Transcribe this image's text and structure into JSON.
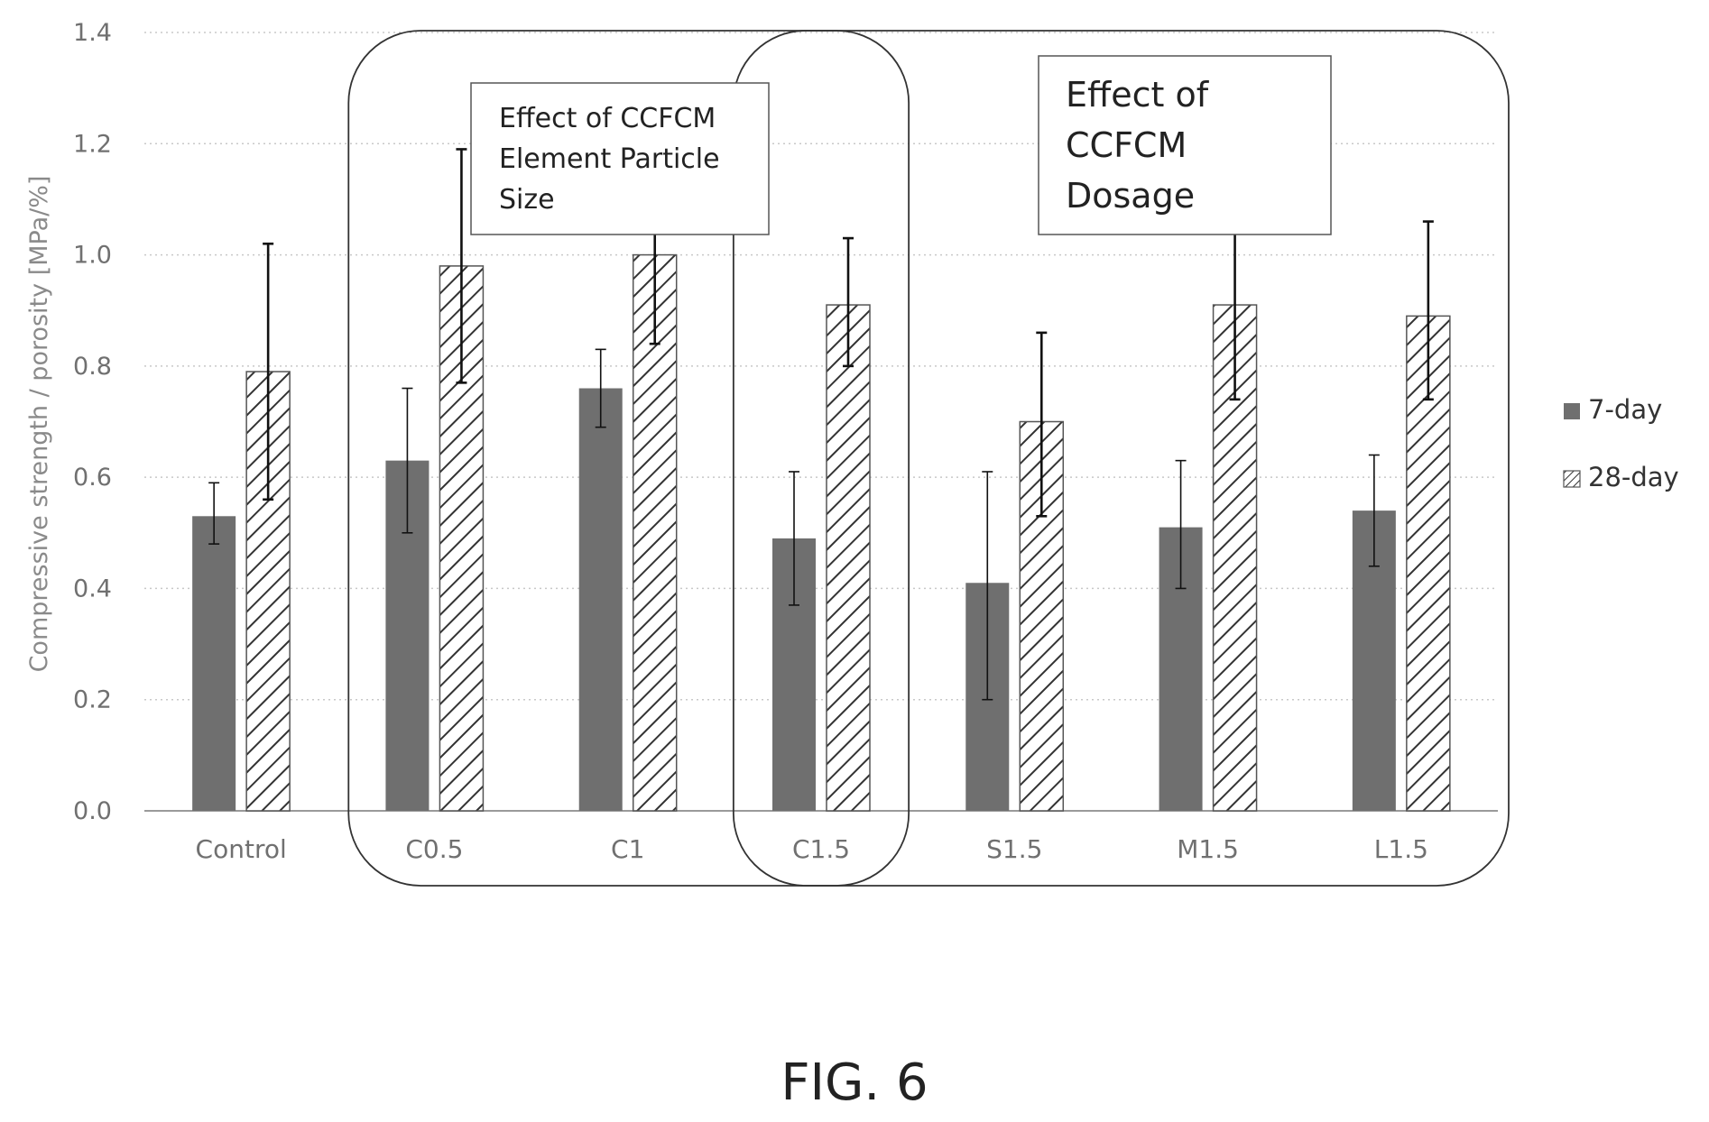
{
  "chart_data": {
    "type": "bar",
    "title": "",
    "xlabel": "",
    "ylabel": "Compressive strength / porosity [MPa/%]",
    "ylim": [
      0,
      1.4
    ],
    "yticks": [
      "0.0",
      "0.2",
      "0.4",
      "0.6",
      "0.8",
      "1.0",
      "1.2",
      "1.4"
    ],
    "grid": "horizontal dotted",
    "legend_position": "right",
    "categories": [
      "Control",
      "C0.5",
      "C1",
      "C1.5",
      "S1.5",
      "M1.5",
      "L1.5"
    ],
    "series": [
      {
        "name": "7-day",
        "style": "solid",
        "color": "#6f6f6f",
        "values": [
          0.53,
          0.63,
          0.76,
          0.49,
          0.41,
          0.51,
          0.54
        ],
        "error_low": [
          0.48,
          0.5,
          0.69,
          0.37,
          0.2,
          0.4,
          0.44
        ],
        "error_high": [
          0.59,
          0.76,
          0.83,
          0.61,
          0.61,
          0.63,
          0.64
        ]
      },
      {
        "name": "28-day",
        "style": "hatched",
        "color": "#333333",
        "values": [
          0.79,
          0.98,
          1.0,
          0.91,
          0.7,
          0.91,
          0.89
        ],
        "error_low": [
          0.56,
          0.77,
          0.84,
          0.8,
          0.53,
          0.74,
          0.74
        ],
        "error_high": [
          1.02,
          1.19,
          1.06,
          1.03,
          0.86,
          1.05,
          1.06
        ]
      }
    ],
    "annotations": [
      {
        "id": "particle-size",
        "text_lines": [
          "Effect of CCFCM",
          "Element Particle",
          "Size"
        ],
        "groups": [
          "C0.5",
          "C1",
          "C1.5"
        ]
      },
      {
        "id": "dosage",
        "text_lines": [
          "Effect of",
          "CCFCM",
          "Dosage"
        ],
        "groups": [
          "C1.5",
          "S1.5",
          "M1.5",
          "L1.5"
        ]
      }
    ]
  },
  "caption": "FIG. 6"
}
